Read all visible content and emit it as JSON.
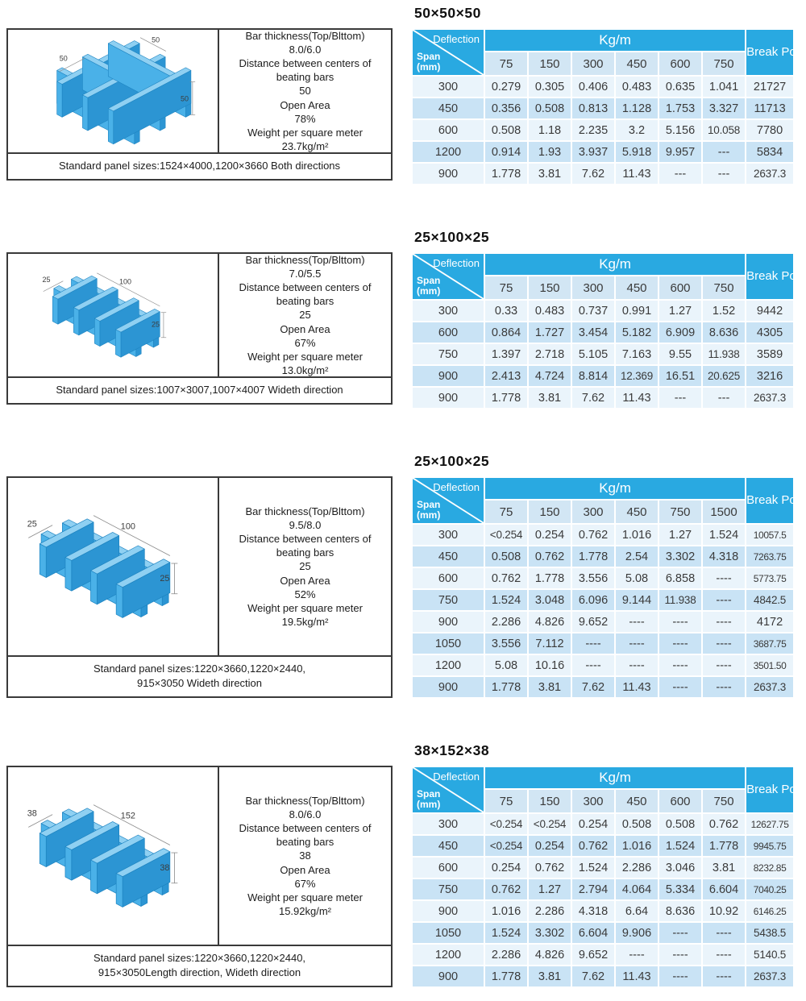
{
  "colors": {
    "header_blue": "#29a9e1",
    "subhead_bg": "#d2e6f4",
    "row_light": "#eaf4fb",
    "row_dark": "#c9e3f5",
    "diagram_top": "#8fd0f2",
    "diagram_side_light": "#4ab1e8",
    "diagram_side_dark": "#2c95d3"
  },
  "table_labels": {
    "deflection": "Deflection",
    "span": "Span",
    "span_unit": "(mm)",
    "kgm": "Kg/m",
    "break": "Break Point"
  },
  "sections": [
    {
      "title": "50×50×50",
      "diagram": {
        "type": "square",
        "dim_left": "50",
        "dim_top": "50",
        "dim_right": "50"
      },
      "panel": {
        "spec_lines": [
          "Bar thickness(Top/Blttom)",
          "8.0/6.0",
          "Distance between centers of",
          "beating bars",
          "50",
          "Open Area",
          "78%",
          "Weight per square meter",
          "23.7kg/m²"
        ],
        "footer_lines": [
          "Standard panel sizes:1524×4000,1200×3660 Both directions"
        ]
      },
      "table": {
        "loads": [
          "75",
          "150",
          "300",
          "450",
          "600",
          "750"
        ],
        "rows": [
          {
            "span": "300",
            "values": [
              "0.279",
              "0.305",
              "0.406",
              "0.483",
              "0.635",
              "1.041"
            ],
            "break": "21727"
          },
          {
            "span": "450",
            "values": [
              "0.356",
              "0.508",
              "0.813",
              "1.128",
              "1.753",
              "3.327"
            ],
            "break": "11713"
          },
          {
            "span": "600",
            "values": [
              "0.508",
              "1.18",
              "2.235",
              "3.2",
              "5.156",
              "10.058"
            ],
            "break": "7780"
          },
          {
            "span": "1200",
            "values": [
              "0.914",
              "1.93",
              "3.937",
              "5.918",
              "9.957",
              "---"
            ],
            "break": "5834"
          },
          {
            "span": "900",
            "values": [
              "1.778",
              "3.81",
              "7.62",
              "11.43",
              "---",
              "---"
            ],
            "break": "2637.3"
          }
        ]
      }
    },
    {
      "title": "25×100×25",
      "diagram": {
        "type": "rect",
        "dim_left": "25",
        "dim_top": "100",
        "dim_right": "25"
      },
      "panel": {
        "spec_lines": [
          "Bar thickness(Top/Blttom)",
          "7.0/5.5",
          "Distance between centers of",
          "beating bars",
          "25",
          "Open Area",
          "67%",
          "Weight per square meter",
          "13.0kg/m²"
        ],
        "footer_lines": [
          "Standard panel sizes:1007×3007,1007×4007 Wideth direction"
        ]
      },
      "table": {
        "loads": [
          "75",
          "150",
          "300",
          "450",
          "600",
          "750"
        ],
        "rows": [
          {
            "span": "300",
            "values": [
              "0.33",
              "0.483",
              "0.737",
              "0.991",
              "1.27",
              "1.52"
            ],
            "break": "9442"
          },
          {
            "span": "600",
            "values": [
              "0.864",
              "1.727",
              "3.454",
              "5.182",
              "6.909",
              "8.636"
            ],
            "break": "4305"
          },
          {
            "span": "750",
            "values": [
              "1.397",
              "2.718",
              "5.105",
              "7.163",
              "9.55",
              "11.938"
            ],
            "break": "3589"
          },
          {
            "span": "900",
            "values": [
              "2.413",
              "4.724",
              "8.814",
              "12.369",
              "16.51",
              "20.625"
            ],
            "break": "3216"
          },
          {
            "span": "900",
            "values": [
              "1.778",
              "3.81",
              "7.62",
              "11.43",
              "---",
              "---"
            ],
            "break": "2637.3"
          }
        ]
      }
    },
    {
      "title": "25×100×25",
      "diagram": {
        "type": "rect",
        "dim_left": "25",
        "dim_top": "100",
        "dim_right": "25"
      },
      "panel": {
        "spec_lines": [
          "Bar thickness(Top/Blttom)",
          "9.5/8.0",
          "Distance between centers of",
          "beating bars",
          "25",
          "Open Area",
          "52%",
          "Weight per square meter",
          "19.5kg/m²"
        ],
        "footer_lines": [
          "Standard panel sizes:1220×3660,1220×2440,",
          "915×3050 Wideth direction"
        ]
      },
      "table": {
        "loads": [
          "75",
          "150",
          "300",
          "450",
          "750",
          "1500"
        ],
        "rows": [
          {
            "span": "300",
            "values": [
              "<0.254",
              "0.254",
              "0.762",
              "1.016",
              "1.27",
              "1.524"
            ],
            "break": "10057.5"
          },
          {
            "span": "450",
            "values": [
              "0.508",
              "0.762",
              "1.778",
              "2.54",
              "3.302",
              "4.318"
            ],
            "break": "7263.75"
          },
          {
            "span": "600",
            "values": [
              "0.762",
              "1.778",
              "3.556",
              "5.08",
              "6.858",
              "----"
            ],
            "break": "5773.75"
          },
          {
            "span": "750",
            "values": [
              "1.524",
              "3.048",
              "6.096",
              "9.144",
              "11.938",
              "----"
            ],
            "break": "4842.5"
          },
          {
            "span": "900",
            "values": [
              "2.286",
              "4.826",
              "9.652",
              "----",
              "----",
              "----"
            ],
            "break": "4172"
          },
          {
            "span": "1050",
            "values": [
              "3.556",
              "7.112",
              "----",
              "----",
              "----",
              "----"
            ],
            "break": "3687.75"
          },
          {
            "span": "1200",
            "values": [
              "5.08",
              "10.16",
              "----",
              "----",
              "----",
              "----"
            ],
            "break": "3501.50"
          },
          {
            "span": "900",
            "values": [
              "1.778",
              "3.81",
              "7.62",
              "11.43",
              "----",
              "----"
            ],
            "break": "2637.3"
          }
        ]
      }
    },
    {
      "title": "38×152×38",
      "diagram": {
        "type": "rect",
        "dim_left": "38",
        "dim_top": "152",
        "dim_right": "38"
      },
      "panel": {
        "spec_lines": [
          "Bar thickness(Top/Blttom)",
          "8.0/6.0",
          "Distance between centers of",
          "beating bars",
          "38",
          "Open Area",
          "67%",
          "Weight per square meter",
          "15.92kg/m²"
        ],
        "footer_lines": [
          "Standard panel sizes:1220×3660,1220×2440,",
          "915×3050Length direction, Wideth direction"
        ]
      },
      "table": {
        "loads": [
          "75",
          "150",
          "300",
          "450",
          "600",
          "750"
        ],
        "rows": [
          {
            "span": "300",
            "values": [
              "<0.254",
              "<0.254",
              "0.254",
              "0.508",
              "0.508",
              "0.762"
            ],
            "break": "12627.75"
          },
          {
            "span": "450",
            "values": [
              "<0.254",
              "0.254",
              "0.762",
              "1.016",
              "1.524",
              "1.778"
            ],
            "break": "9945.75"
          },
          {
            "span": "600",
            "values": [
              "0.254",
              "0.762",
              "1.524",
              "2.286",
              "3.046",
              "3.81"
            ],
            "break": "8232.85"
          },
          {
            "span": "750",
            "values": [
              "0.762",
              "1.27",
              "2.794",
              "4.064",
              "5.334",
              "6.604"
            ],
            "break": "7040.25"
          },
          {
            "span": "900",
            "values": [
              "1.016",
              "2.286",
              "4.318",
              "6.64",
              "8.636",
              "10.92"
            ],
            "break": "6146.25"
          },
          {
            "span": "1050",
            "values": [
              "1.524",
              "3.302",
              "6.604",
              "9.906",
              "----",
              "----"
            ],
            "break": "5438.5"
          },
          {
            "span": "1200",
            "values": [
              "2.286",
              "4.826",
              "9.652",
              "----",
              "----",
              "----"
            ],
            "break": "5140.5"
          },
          {
            "span": "900",
            "values": [
              "1.778",
              "3.81",
              "7.62",
              "11.43",
              "----",
              "----"
            ],
            "break": "2637.3"
          }
        ]
      }
    }
  ]
}
